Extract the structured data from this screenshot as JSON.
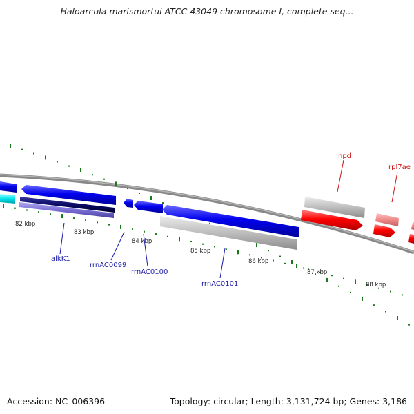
{
  "title": "Haloarcula marismortui ATCC 43049 chromosome I, complete seq...",
  "footer": {
    "accession": "Accession: NC_006396",
    "info": "Topology: circular; Length: 3,131,724 bp; Genes: 3,186"
  },
  "scale": {
    "tick_labels": [
      "82 kbp",
      "83 kbp",
      "84 kbp",
      "85 kbp",
      "86 kbp",
      "87 kbp",
      "88 kbp"
    ]
  },
  "gene_labels": [
    {
      "text": "alkK1",
      "color": "#1a1aa8"
    },
    {
      "text": "rrnAC0099",
      "color": "#1a1aa8"
    },
    {
      "text": "rrnAC0100",
      "color": "#1a1aa8"
    },
    {
      "text": "rrnAC0101",
      "color": "#1a1aa8"
    },
    {
      "text": "npd",
      "color": "#cc1111"
    },
    {
      "text": "rpl7ae",
      "color": "#cc1111"
    }
  ],
  "colors": {
    "backbone": "#808080",
    "cds_forward": "#0000e6",
    "cds_reverse": "#ff0000",
    "feature_gray": "#bdbdbd",
    "tick_green": "#1a7a1a",
    "cyan": "#00e5ee",
    "navy": "#0a0a66",
    "lavender": "#7a6fd6",
    "pink": "#ef8a8a"
  }
}
